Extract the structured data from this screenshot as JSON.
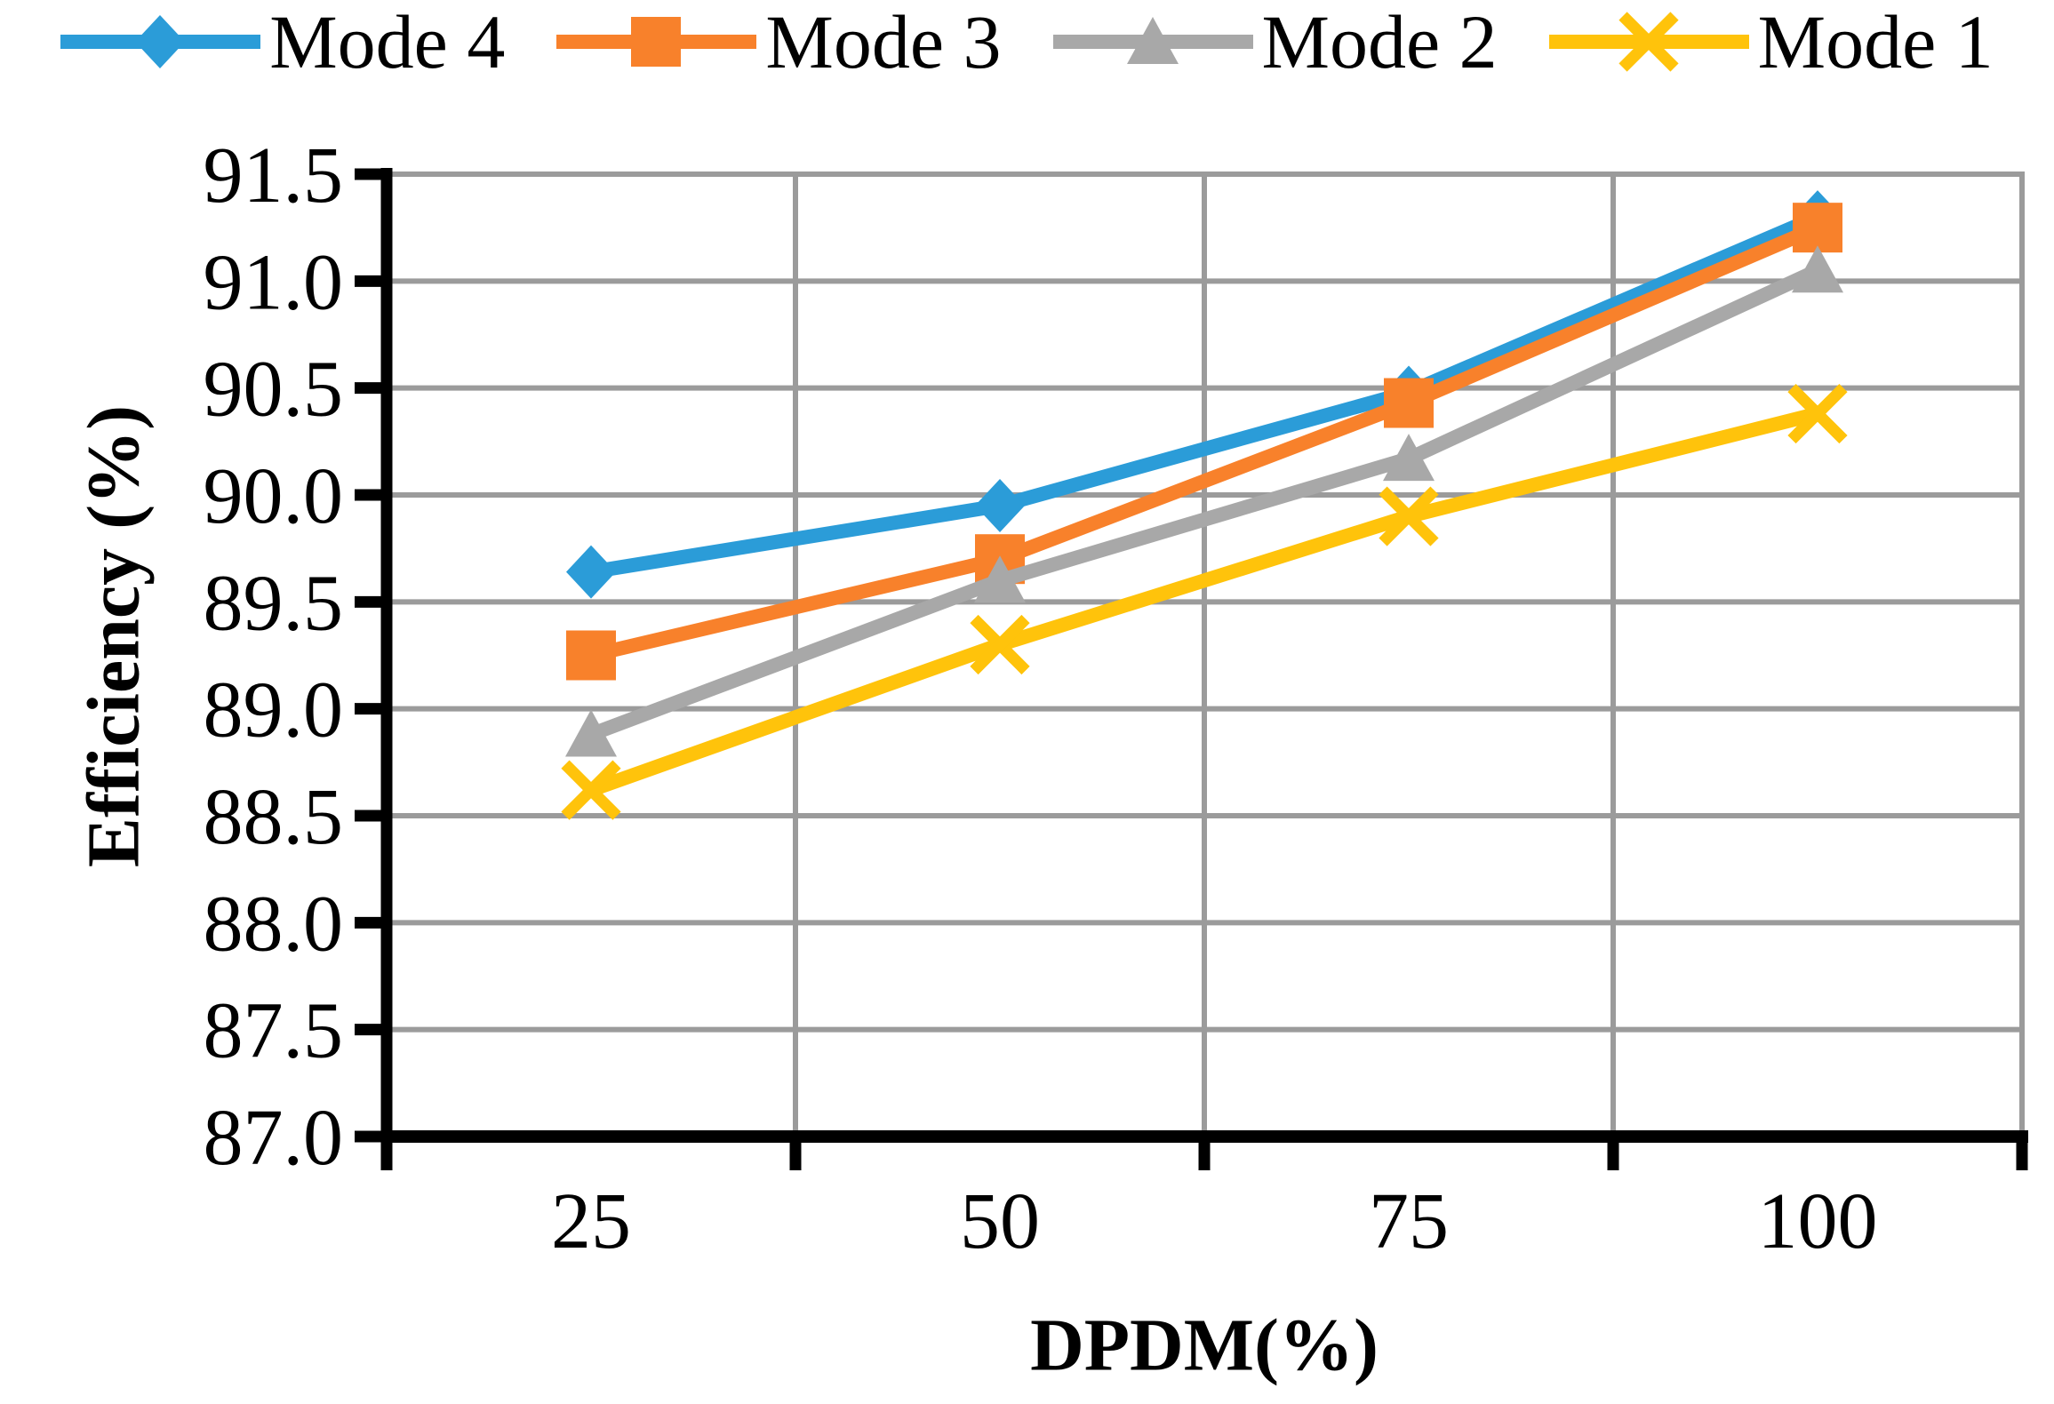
{
  "chart_data": {
    "type": "line",
    "title": "",
    "xlabel": "DPDM(%)",
    "ylabel": "Efficiency (%)",
    "categories": [
      25,
      50,
      75,
      100
    ],
    "xtick_labels": [
      "25",
      "50",
      "75",
      "100"
    ],
    "ylim": [
      87.0,
      91.5
    ],
    "ytick_step": 0.5,
    "ytick_labels": [
      "87.0",
      "87.5",
      "88.0",
      "88.5",
      "89.0",
      "89.5",
      "90.0",
      "90.5",
      "91.0",
      "91.5"
    ],
    "grid": {
      "horizontal": true,
      "vertical": true,
      "color": "#9B9B9B"
    },
    "legend_position": "top",
    "axis_color": "#000000",
    "background": "#FFFFFF",
    "series": [
      {
        "name": "Mode 4",
        "marker": "diamond",
        "color": "#2B9CD8",
        "values": [
          89.64,
          89.95,
          90.48,
          91.3
        ]
      },
      {
        "name": "Mode 3",
        "marker": "square",
        "color": "#F8812B",
        "values": [
          89.25,
          89.7,
          90.43,
          91.25
        ]
      },
      {
        "name": "Mode 2",
        "marker": "triangle",
        "color": "#A8A8A8",
        "values": [
          88.88,
          89.6,
          90.17,
          91.05
        ]
      },
      {
        "name": "Mode 1",
        "marker": "x",
        "color": "#FFC30B",
        "values": [
          88.62,
          89.3,
          89.9,
          90.38
        ]
      }
    ]
  }
}
